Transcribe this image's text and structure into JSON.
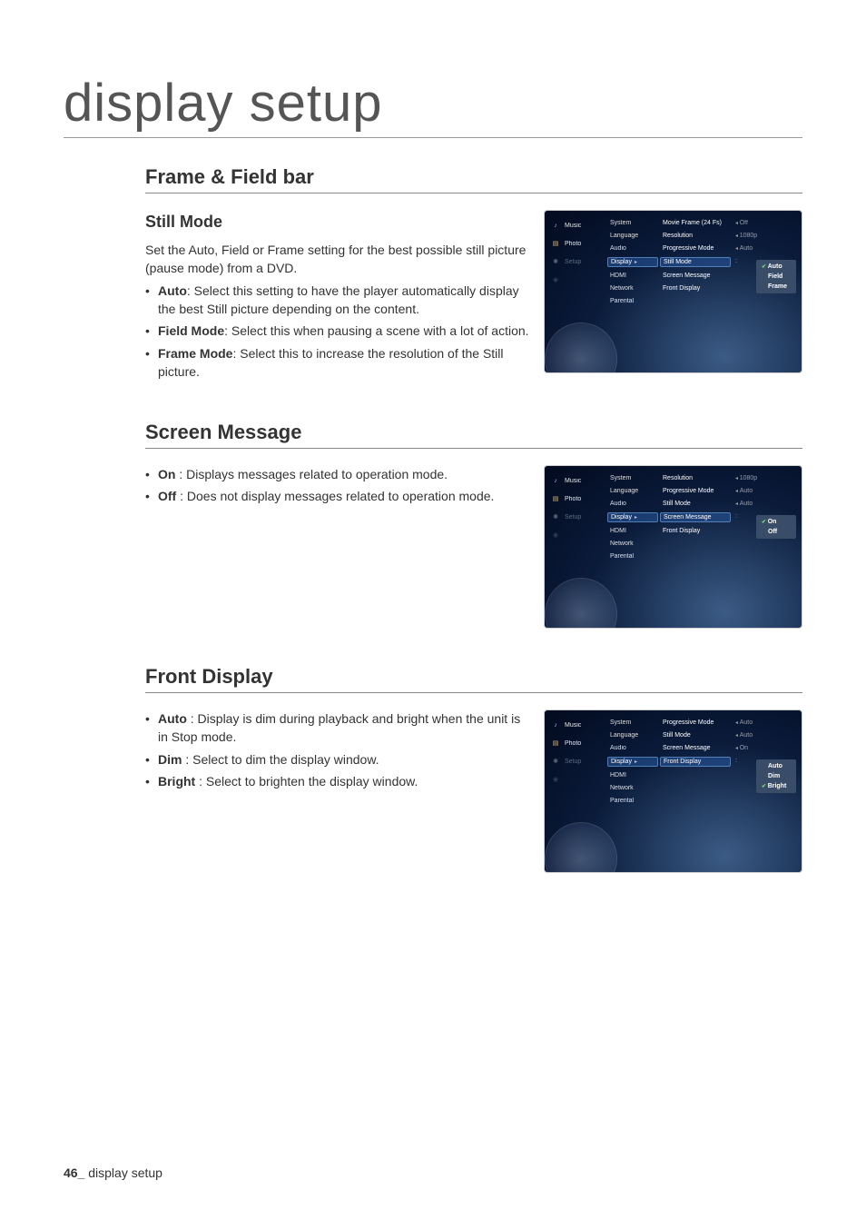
{
  "page": {
    "title": "display setup",
    "footer_number": "46_",
    "footer_text": "display setup"
  },
  "frame_field": {
    "heading": "Frame & Field bar",
    "still_mode": {
      "heading": "Still Mode",
      "intro": "Set the Auto, Field or Frame setting for the best possible still picture (pause mode) from a DVD.",
      "auto_label": "Auto",
      "auto_text": ": Select this setting to have the player automatically display the best Still picture depending on the content.",
      "field_label": "Field Mode",
      "field_text": ": Select this when pausing a scene with a lot of action.",
      "frame_label": "Frame Mode",
      "frame_text": ": Select this to increase the resolution of the Still picture."
    }
  },
  "screen_message": {
    "heading": "Screen Message",
    "on_label": "On",
    "on_text": " : Displays messages related to operation mode.",
    "off_label": "Off",
    "off_text": " : Does not display messages related to operation mode."
  },
  "front_display": {
    "heading": "Front Display",
    "auto_label": "Auto",
    "auto_text": " : Display is dim during playback and bright when the unit is in Stop mode.",
    "dim_label": "Dim",
    "dim_text": " : Select to dim the display window.",
    "bright_label": "Bright",
    "bright_text": " : Select to brighten the display window."
  },
  "osd": {
    "sidebar": {
      "music": "Music",
      "photo": "Photo",
      "setup": "Setup"
    },
    "categories": {
      "system": "System",
      "language": "Language",
      "audio": "Audio",
      "display": "Display",
      "hdmi": "HDMI",
      "network": "Network",
      "parental": "Parental"
    },
    "shot1": {
      "rows": {
        "movieframe": "Movie Frame (24 Fs)",
        "movieframe_val": "Off",
        "resolution": "Resolution",
        "resolution_val": "1080p",
        "progressive": "Progressive Mode",
        "progressive_val": "Auto",
        "stillmode": "Still Mode",
        "screenmsg": "Screen Message",
        "frontdisplay": "Front Display"
      },
      "popup": {
        "auto": "Auto",
        "field": "Field",
        "frame": "Frame"
      }
    },
    "shot2": {
      "rows": {
        "resolution": "Resolution",
        "resolution_val": "1080p",
        "progressive": "Progressive Mode",
        "progressive_val": "Auto",
        "stillmode": "Still Mode",
        "stillmode_val": "Auto",
        "screenmsg": "Screen Message",
        "frontdisplay": "Front Display"
      },
      "popup": {
        "on": "On",
        "off": "Off"
      }
    },
    "shot3": {
      "rows": {
        "progressive": "Progressive Mode",
        "progressive_val": "Auto",
        "stillmode": "Still Mode",
        "stillmode_val": "Auto",
        "screenmsg": "Screen Message",
        "screenmsg_val": "On",
        "frontdisplay": "Front Display"
      },
      "popup": {
        "auto": "Auto",
        "dim": "Dim",
        "bright": "Bright"
      }
    }
  }
}
